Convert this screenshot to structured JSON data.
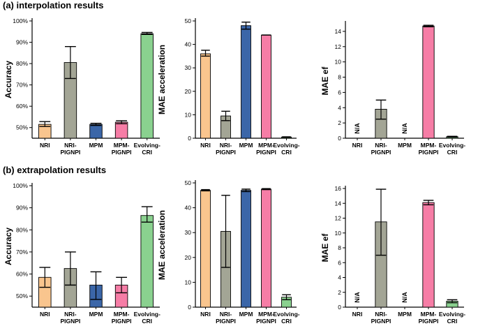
{
  "sections": {
    "a_title": "(a) interpolation results",
    "b_title": "(b) extrapolation results"
  },
  "colors": {
    "NRI": "#f9c58e",
    "NRI-PIGNPI": "#a3a595",
    "MPM": "#3b66a8",
    "MPM-PIGNPI": "#f67da6",
    "Evolving-CRI": "#8ad18f"
  },
  "categories": [
    [
      "NRI"
    ],
    [
      "NRI-",
      "PIGNPI"
    ],
    [
      "MPM"
    ],
    [
      "MPM-",
      "PIGNPI"
    ],
    [
      "Evolving-",
      "CRI"
    ]
  ],
  "chart_data": [
    {
      "id": "a-accuracy",
      "type": "bar",
      "title": "",
      "xlabel": "",
      "ylabel": "Accuracy",
      "categories": [
        "NRI",
        "NRI-PIGNPI",
        "MPM",
        "MPM-PIGNPI",
        "Evolving-CRI"
      ],
      "values": [
        51.5,
        80.5,
        51.5,
        52.5,
        94.0
      ],
      "error": [
        [
          50.5,
          52.8
        ],
        [
          73.0,
          88.0
        ],
        [
          51.0,
          52.0
        ],
        [
          51.8,
          53.2
        ],
        [
          93.7,
          94.6
        ]
      ],
      "ylim": [
        45,
        100
      ],
      "yticks": [
        50,
        60,
        70,
        80,
        90,
        100
      ],
      "ytick_labels": [
        "50%",
        "60%",
        "70%",
        "80%",
        "90%",
        "100%"
      ],
      "na": []
    },
    {
      "id": "a-acceleration",
      "type": "bar",
      "title": "",
      "xlabel": "",
      "ylabel": "MAE acceleration",
      "categories": [
        "NRI",
        "NRI-PIGNPI",
        "MPM",
        "MPM-PIGNPI",
        "Evolving-CRI"
      ],
      "values": [
        36.0,
        9.5,
        48.0,
        44.0,
        0.5
      ],
      "error": [
        [
          35.0,
          37.5
        ],
        [
          7.5,
          11.5
        ],
        [
          46.5,
          49.5
        ],
        [
          44.0,
          44.0
        ],
        [
          0.4,
          0.6
        ]
      ],
      "ylim": [
        0,
        50
      ],
      "yticks": [
        0,
        10,
        20,
        30,
        40,
        50
      ],
      "ytick_labels": [
        "0",
        "10",
        "20",
        "30",
        "40",
        "50"
      ],
      "na": []
    },
    {
      "id": "a-ef",
      "type": "bar",
      "title": "",
      "xlabel": "",
      "ylabel": "MAE ef",
      "categories": [
        "NRI",
        "NRI-PIGNPI",
        "MPM",
        "MPM-PIGNPI",
        "Evolving-CRI"
      ],
      "values": [
        null,
        3.8,
        null,
        14.7,
        0.2
      ],
      "error": [
        null,
        [
          2.5,
          5.0
        ],
        null,
        [
          14.6,
          14.8
        ],
        [
          0.15,
          0.25
        ]
      ],
      "ylim": [
        0,
        15
      ],
      "yticks": [
        0,
        2,
        4,
        6,
        8,
        10,
        12,
        14
      ],
      "ytick_labels": [
        "0",
        "2",
        "4",
        "6",
        "8",
        "10",
        "12",
        "14"
      ],
      "na": [
        "N/A",
        null,
        "N/A",
        null,
        null
      ]
    },
    {
      "id": "b-accuracy",
      "type": "bar",
      "title": "",
      "xlabel": "",
      "ylabel": "Accuracy",
      "categories": [
        "NRI",
        "NRI-PIGNPI",
        "MPM",
        "MPM-PIGNPI",
        "Evolving-CRI"
      ],
      "values": [
        58.5,
        62.5,
        55.0,
        55.0,
        86.5
      ],
      "error": [
        [
          54.0,
          63.0
        ],
        [
          55.0,
          70.0
        ],
        [
          48.5,
          61.0
        ],
        [
          51.5,
          58.5
        ],
        [
          83.5,
          90.5
        ]
      ],
      "ylim": [
        45,
        100
      ],
      "yticks": [
        50,
        60,
        70,
        80,
        90,
        100
      ],
      "ytick_labels": [
        "50%",
        "60%",
        "70%",
        "80%",
        "90%",
        "100%"
      ],
      "na": []
    },
    {
      "id": "b-acceleration",
      "type": "bar",
      "title": "",
      "xlabel": "",
      "ylabel": "MAE acceleration",
      "categories": [
        "NRI",
        "NRI-PIGNPI",
        "MPM",
        "MPM-PIGNPI",
        "Evolving-CRI"
      ],
      "values": [
        47.0,
        30.5,
        47.0,
        47.5,
        4.0
      ],
      "error": [
        [
          46.8,
          47.3
        ],
        [
          16.0,
          45.0
        ],
        [
          46.5,
          47.5
        ],
        [
          47.3,
          47.7
        ],
        [
          3.0,
          5.0
        ]
      ],
      "ylim": [
        0,
        50
      ],
      "yticks": [
        0,
        10,
        20,
        30,
        40,
        50
      ],
      "ytick_labels": [
        "0",
        "10",
        "20",
        "30",
        "40",
        "50"
      ],
      "na": []
    },
    {
      "id": "b-ef",
      "type": "bar",
      "title": "",
      "xlabel": "",
      "ylabel": "MAE ef",
      "categories": [
        "NRI",
        "NRI-PIGNPI",
        "MPM",
        "MPM-PIGNPI",
        "Evolving-CRI"
      ],
      "values": [
        null,
        11.5,
        null,
        14.1,
        0.8
      ],
      "error": [
        null,
        [
          7.0,
          15.9
        ],
        null,
        [
          13.8,
          14.4
        ],
        [
          0.6,
          1.0
        ]
      ],
      "ylim": [
        0,
        16
      ],
      "yticks": [
        0,
        2,
        4,
        6,
        8,
        10,
        12,
        14,
        16
      ],
      "ytick_labels": [
        "0",
        "2",
        "4",
        "6",
        "8",
        "10",
        "12",
        "14",
        "16"
      ],
      "na": [
        "N/A",
        null,
        "N/A",
        null,
        null
      ]
    }
  ]
}
